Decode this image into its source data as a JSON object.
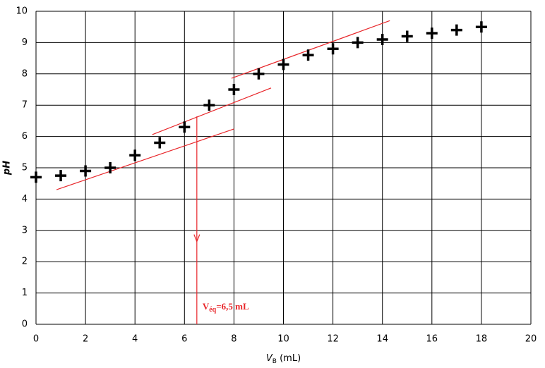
{
  "chart_data": {
    "type": "scatter",
    "x_label": {
      "main": "V",
      "sub": "B",
      "rest": " (mL)"
    },
    "y_label": "pH",
    "x": [
      0,
      1,
      2,
      3,
      4,
      5,
      6,
      7,
      8,
      9,
      10,
      11,
      12,
      13,
      14,
      15,
      16,
      17,
      18
    ],
    "values": [
      4.7,
      4.75,
      4.9,
      5.0,
      5.4,
      5.8,
      6.3,
      7.0,
      7.5,
      8.0,
      8.3,
      8.6,
      8.8,
      9.0,
      9.1,
      9.2,
      9.3,
      9.4,
      9.5
    ],
    "color": "#000000",
    "xlim": [
      0,
      20
    ],
    "xticks": [
      0,
      2,
      4,
      6,
      8,
      10,
      12,
      14,
      16,
      18,
      20
    ],
    "ylim": [
      0,
      10
    ],
    "yticks": [
      0,
      1,
      2,
      3,
      4,
      5,
      6,
      7,
      8,
      9,
      10
    ],
    "grid": true,
    "line_color": "#e8262a",
    "lines": [
      {
        "x": [
          0.83,
          8.0
        ],
        "y": [
          4.3,
          6.24
        ]
      },
      {
        "x": [
          4.7,
          9.5
        ],
        "y": [
          6.06,
          7.55
        ]
      },
      {
        "x": [
          7.9,
          14.3
        ],
        "y": [
          7.86,
          9.7
        ]
      },
      {
        "x": [
          6.5,
          6.5
        ],
        "y": [
          6.64,
          0
        ]
      }
    ],
    "annotation": {
      "main": "V",
      "sub": "éq",
      "rest": "=6,5 mL"
    }
  }
}
